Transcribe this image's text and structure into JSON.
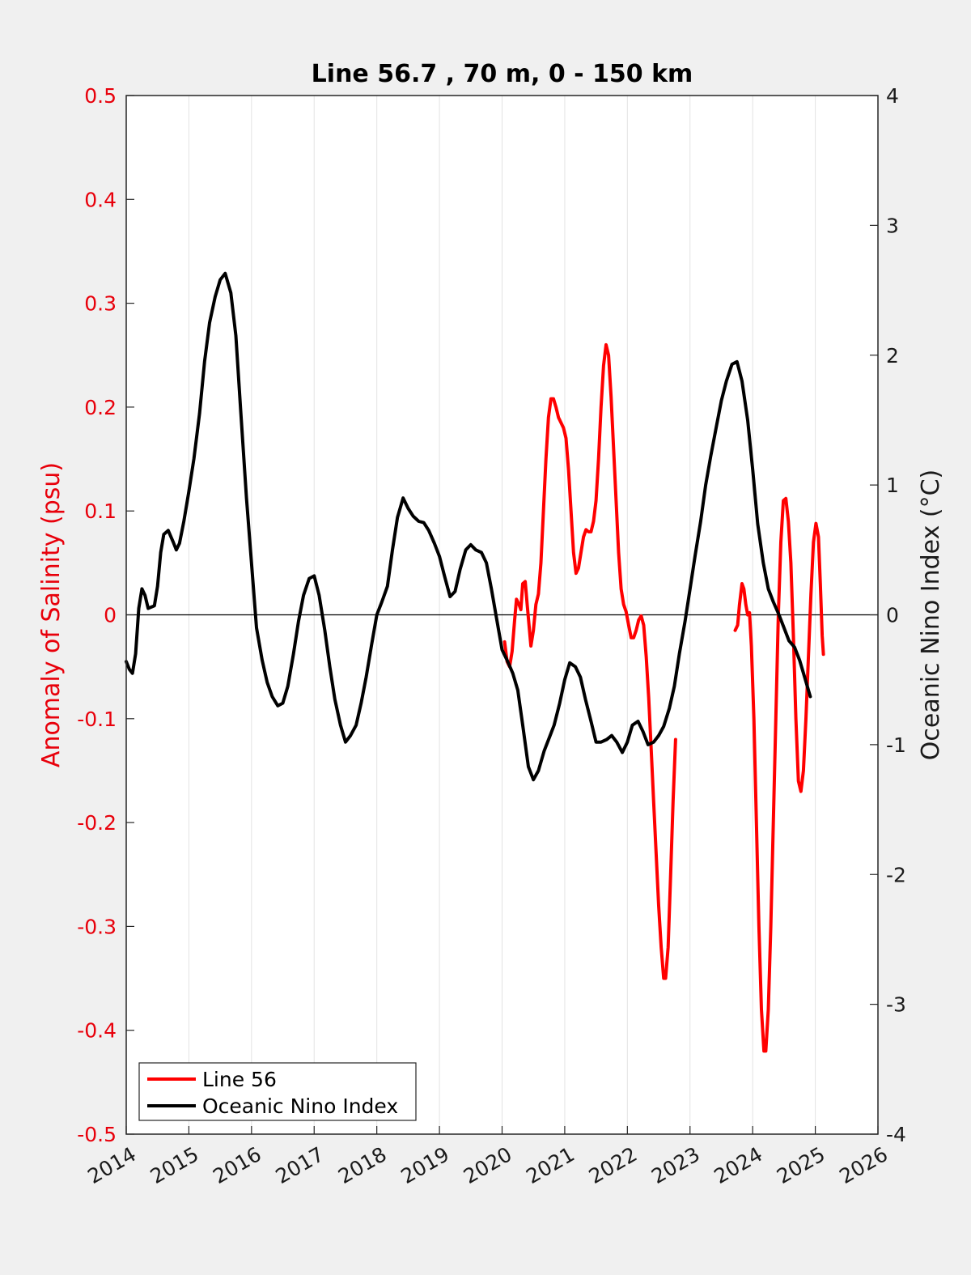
{
  "chart_data": {
    "type": "line",
    "title": "Line 56.7 , 70 m, 0 - 150 km",
    "ylabel_left": "Anomaly of Salinity (psu)",
    "ylabel_right": "Oceanic Nino Index (°C)",
    "xlim": [
      2014,
      2026
    ],
    "ylim_left": [
      -0.5,
      0.5
    ],
    "ylim_right": [
      -4,
      4
    ],
    "x_ticks": [
      "2014",
      "2015",
      "2016",
      "2017",
      "2018",
      "2019",
      "2020",
      "2021",
      "2022",
      "2023",
      "2024",
      "2025",
      "2026"
    ],
    "y_ticks_left": [
      "0.5",
      "0.4",
      "0.3",
      "0.2",
      "0.1",
      "0",
      "-0.1",
      "-0.2",
      "-0.3",
      "-0.4",
      "-0.5"
    ],
    "y_ticks_right": [
      "4",
      "3",
      "2",
      "1",
      "0",
      "-1",
      "-2",
      "-3",
      "-4"
    ],
    "grid": "vertical-only",
    "zero_line": true,
    "legend_position": "bottom-left",
    "series": [
      {
        "name": "Line 56",
        "axis": "left",
        "color": "#ff0000",
        "segments": [
          [
            [
              2020.04,
              -0.026
            ],
            [
              2020.08,
              -0.045
            ],
            [
              2020.12,
              -0.05
            ],
            [
              2020.16,
              -0.035
            ],
            [
              2020.2,
              -0.005
            ],
            [
              2020.23,
              0.015
            ],
            [
              2020.27,
              0.01
            ],
            [
              2020.3,
              0.005
            ],
            [
              2020.33,
              0.03
            ],
            [
              2020.37,
              0.032
            ],
            [
              2020.4,
              0.01
            ],
            [
              2020.43,
              -0.01
            ],
            [
              2020.46,
              -0.03
            ],
            [
              2020.5,
              -0.015
            ],
            [
              2020.54,
              0.01
            ],
            [
              2020.58,
              0.02
            ],
            [
              2020.62,
              0.05
            ],
            [
              2020.66,
              0.1
            ],
            [
              2020.7,
              0.15
            ],
            [
              2020.74,
              0.19
            ],
            [
              2020.78,
              0.208
            ],
            [
              2020.82,
              0.208
            ],
            [
              2020.86,
              0.2
            ],
            [
              2020.9,
              0.19
            ],
            [
              2020.94,
              0.185
            ],
            [
              2020.98,
              0.18
            ],
            [
              2021.02,
              0.17
            ],
            [
              2021.06,
              0.14
            ],
            [
              2021.1,
              0.1
            ],
            [
              2021.14,
              0.06
            ],
            [
              2021.18,
              0.04
            ],
            [
              2021.22,
              0.045
            ],
            [
              2021.26,
              0.06
            ],
            [
              2021.3,
              0.075
            ],
            [
              2021.34,
              0.082
            ],
            [
              2021.38,
              0.08
            ],
            [
              2021.42,
              0.08
            ],
            [
              2021.46,
              0.09
            ],
            [
              2021.5,
              0.11
            ],
            [
              2021.54,
              0.15
            ],
            [
              2021.58,
              0.2
            ],
            [
              2021.62,
              0.24
            ],
            [
              2021.66,
              0.26
            ],
            [
              2021.7,
              0.25
            ],
            [
              2021.74,
              0.21
            ],
            [
              2021.78,
              0.16
            ],
            [
              2021.82,
              0.11
            ],
            [
              2021.86,
              0.06
            ],
            [
              2021.9,
              0.025
            ],
            [
              2021.94,
              0.01
            ],
            [
              2021.98,
              0.003
            ],
            [
              2022.02,
              -0.01
            ],
            [
              2022.06,
              -0.022
            ],
            [
              2022.1,
              -0.022
            ],
            [
              2022.14,
              -0.015
            ],
            [
              2022.18,
              -0.005
            ],
            [
              2022.22,
              -0.001
            ],
            [
              2022.26,
              -0.01
            ],
            [
              2022.3,
              -0.04
            ],
            [
              2022.34,
              -0.08
            ],
            [
              2022.38,
              -0.13
            ],
            [
              2022.42,
              -0.18
            ],
            [
              2022.46,
              -0.23
            ],
            [
              2022.5,
              -0.28
            ],
            [
              2022.54,
              -0.32
            ],
            [
              2022.58,
              -0.35
            ],
            [
              2022.61,
              -0.35
            ],
            [
              2022.65,
              -0.32
            ],
            [
              2022.69,
              -0.25
            ],
            [
              2022.73,
              -0.18
            ],
            [
              2022.77,
              -0.12
            ]
          ],
          [
            [
              2023.72,
              -0.015
            ],
            [
              2023.76,
              -0.01
            ],
            [
              2023.79,
              0.01
            ],
            [
              2023.83,
              0.03
            ],
            [
              2023.86,
              0.025
            ],
            [
              2023.89,
              0.01
            ],
            [
              2023.92,
              0.0
            ],
            [
              2023.95,
              0.002
            ],
            [
              2023.98,
              -0.03
            ],
            [
              2024.02,
              -0.1
            ],
            [
              2024.06,
              -0.2
            ],
            [
              2024.1,
              -0.3
            ],
            [
              2024.14,
              -0.38
            ],
            [
              2024.18,
              -0.42
            ],
            [
              2024.21,
              -0.42
            ],
            [
              2024.25,
              -0.38
            ],
            [
              2024.29,
              -0.3
            ],
            [
              2024.33,
              -0.2
            ],
            [
              2024.37,
              -0.1
            ],
            [
              2024.41,
              0.0
            ],
            [
              2024.45,
              0.07
            ],
            [
              2024.49,
              0.11
            ],
            [
              2024.53,
              0.112
            ],
            [
              2024.57,
              0.09
            ],
            [
              2024.61,
              0.05
            ],
            [
              2024.65,
              -0.02
            ],
            [
              2024.69,
              -0.1
            ],
            [
              2024.73,
              -0.16
            ],
            [
              2024.77,
              -0.17
            ],
            [
              2024.81,
              -0.15
            ],
            [
              2024.85,
              -0.1
            ],
            [
              2024.89,
              -0.04
            ],
            [
              2024.93,
              0.02
            ],
            [
              2024.97,
              0.07
            ],
            [
              2025.01,
              0.088
            ],
            [
              2025.05,
              0.075
            ],
            [
              2025.08,
              0.03
            ],
            [
              2025.11,
              -0.02
            ],
            [
              2025.13,
              -0.038
            ]
          ]
        ]
      },
      {
        "name": "Oceanic Nino Index",
        "axis": "right",
        "color": "#000000",
        "points": [
          [
            2014.0,
            -0.36
          ],
          [
            2014.05,
            -0.42
          ],
          [
            2014.1,
            -0.45
          ],
          [
            2014.15,
            -0.3
          ],
          [
            2014.2,
            0.05
          ],
          [
            2014.25,
            0.2
          ],
          [
            2014.3,
            0.15
          ],
          [
            2014.35,
            0.05
          ],
          [
            2014.45,
            0.07
          ],
          [
            2014.5,
            0.22
          ],
          [
            2014.55,
            0.48
          ],
          [
            2014.6,
            0.62
          ],
          [
            2014.67,
            0.65
          ],
          [
            2014.75,
            0.56
          ],
          [
            2014.8,
            0.5
          ],
          [
            2014.85,
            0.55
          ],
          [
            2014.92,
            0.72
          ],
          [
            2015.0,
            0.95
          ],
          [
            2015.08,
            1.2
          ],
          [
            2015.17,
            1.55
          ],
          [
            2015.25,
            1.95
          ],
          [
            2015.33,
            2.25
          ],
          [
            2015.42,
            2.45
          ],
          [
            2015.5,
            2.58
          ],
          [
            2015.58,
            2.63
          ],
          [
            2015.67,
            2.48
          ],
          [
            2015.75,
            2.15
          ],
          [
            2015.83,
            1.55
          ],
          [
            2015.92,
            0.9
          ],
          [
            2016.0,
            0.4
          ],
          [
            2016.08,
            -0.1
          ],
          [
            2016.17,
            -0.35
          ],
          [
            2016.25,
            -0.52
          ],
          [
            2016.33,
            -0.63
          ],
          [
            2016.42,
            -0.7
          ],
          [
            2016.5,
            -0.68
          ],
          [
            2016.58,
            -0.55
          ],
          [
            2016.67,
            -0.3
          ],
          [
            2016.75,
            -0.05
          ],
          [
            2016.83,
            0.15
          ],
          [
            2016.92,
            0.28
          ],
          [
            2017.0,
            0.3
          ],
          [
            2017.08,
            0.15
          ],
          [
            2017.17,
            -0.12
          ],
          [
            2017.25,
            -0.4
          ],
          [
            2017.33,
            -0.65
          ],
          [
            2017.42,
            -0.85
          ],
          [
            2017.5,
            -0.98
          ],
          [
            2017.58,
            -0.93
          ],
          [
            2017.67,
            -0.85
          ],
          [
            2017.75,
            -0.68
          ],
          [
            2017.83,
            -0.48
          ],
          [
            2017.92,
            -0.22
          ],
          [
            2018.0,
            0.0
          ],
          [
            2018.08,
            0.1
          ],
          [
            2018.17,
            0.22
          ],
          [
            2018.25,
            0.5
          ],
          [
            2018.33,
            0.75
          ],
          [
            2018.42,
            0.9
          ],
          [
            2018.5,
            0.82
          ],
          [
            2018.58,
            0.76
          ],
          [
            2018.67,
            0.72
          ],
          [
            2018.75,
            0.71
          ],
          [
            2018.83,
            0.65
          ],
          [
            2018.92,
            0.55
          ],
          [
            2019.0,
            0.45
          ],
          [
            2019.08,
            0.3
          ],
          [
            2019.17,
            0.14
          ],
          [
            2019.25,
            0.18
          ],
          [
            2019.33,
            0.35
          ],
          [
            2019.42,
            0.5
          ],
          [
            2019.5,
            0.54
          ],
          [
            2019.58,
            0.5
          ],
          [
            2019.67,
            0.48
          ],
          [
            2019.75,
            0.4
          ],
          [
            2019.83,
            0.2
          ],
          [
            2019.92,
            -0.05
          ],
          [
            2020.0,
            -0.27
          ],
          [
            2020.08,
            -0.35
          ],
          [
            2020.17,
            -0.45
          ],
          [
            2020.25,
            -0.58
          ],
          [
            2020.33,
            -0.85
          ],
          [
            2020.42,
            -1.17
          ],
          [
            2020.5,
            -1.27
          ],
          [
            2020.58,
            -1.2
          ],
          [
            2020.67,
            -1.05
          ],
          [
            2020.75,
            -0.95
          ],
          [
            2020.83,
            -0.85
          ],
          [
            2020.92,
            -0.68
          ],
          [
            2021.0,
            -0.5
          ],
          [
            2021.08,
            -0.37
          ],
          [
            2021.17,
            -0.4
          ],
          [
            2021.25,
            -0.48
          ],
          [
            2021.33,
            -0.65
          ],
          [
            2021.42,
            -0.82
          ],
          [
            2021.5,
            -0.98
          ],
          [
            2021.58,
            -0.98
          ],
          [
            2021.67,
            -0.96
          ],
          [
            2021.75,
            -0.93
          ],
          [
            2021.83,
            -0.98
          ],
          [
            2021.92,
            -1.06
          ],
          [
            2022.0,
            -0.98
          ],
          [
            2022.08,
            -0.85
          ],
          [
            2022.17,
            -0.82
          ],
          [
            2022.25,
            -0.9
          ],
          [
            2022.33,
            -1.0
          ],
          [
            2022.42,
            -0.98
          ],
          [
            2022.5,
            -0.93
          ],
          [
            2022.58,
            -0.86
          ],
          [
            2022.67,
            -0.72
          ],
          [
            2022.75,
            -0.55
          ],
          [
            2022.83,
            -0.3
          ],
          [
            2022.92,
            -0.05
          ],
          [
            2023.0,
            0.2
          ],
          [
            2023.08,
            0.45
          ],
          [
            2023.17,
            0.72
          ],
          [
            2023.25,
            1.0
          ],
          [
            2023.33,
            1.22
          ],
          [
            2023.42,
            1.45
          ],
          [
            2023.5,
            1.65
          ],
          [
            2023.58,
            1.8
          ],
          [
            2023.67,
            1.93
          ],
          [
            2023.75,
            1.95
          ],
          [
            2023.83,
            1.8
          ],
          [
            2023.92,
            1.5
          ],
          [
            2024.0,
            1.12
          ],
          [
            2024.08,
            0.7
          ],
          [
            2024.17,
            0.4
          ],
          [
            2024.25,
            0.2
          ],
          [
            2024.33,
            0.1
          ],
          [
            2024.42,
            0.0
          ],
          [
            2024.5,
            -0.1
          ],
          [
            2024.58,
            -0.2
          ],
          [
            2024.67,
            -0.25
          ],
          [
            2024.75,
            -0.35
          ],
          [
            2024.83,
            -0.48
          ],
          [
            2024.92,
            -0.63
          ]
        ]
      }
    ]
  },
  "legend": {
    "items": [
      {
        "label": "Line 56",
        "color": "#ff0000"
      },
      {
        "label": "Oceanic Nino Index",
        "color": "#000000"
      }
    ]
  }
}
